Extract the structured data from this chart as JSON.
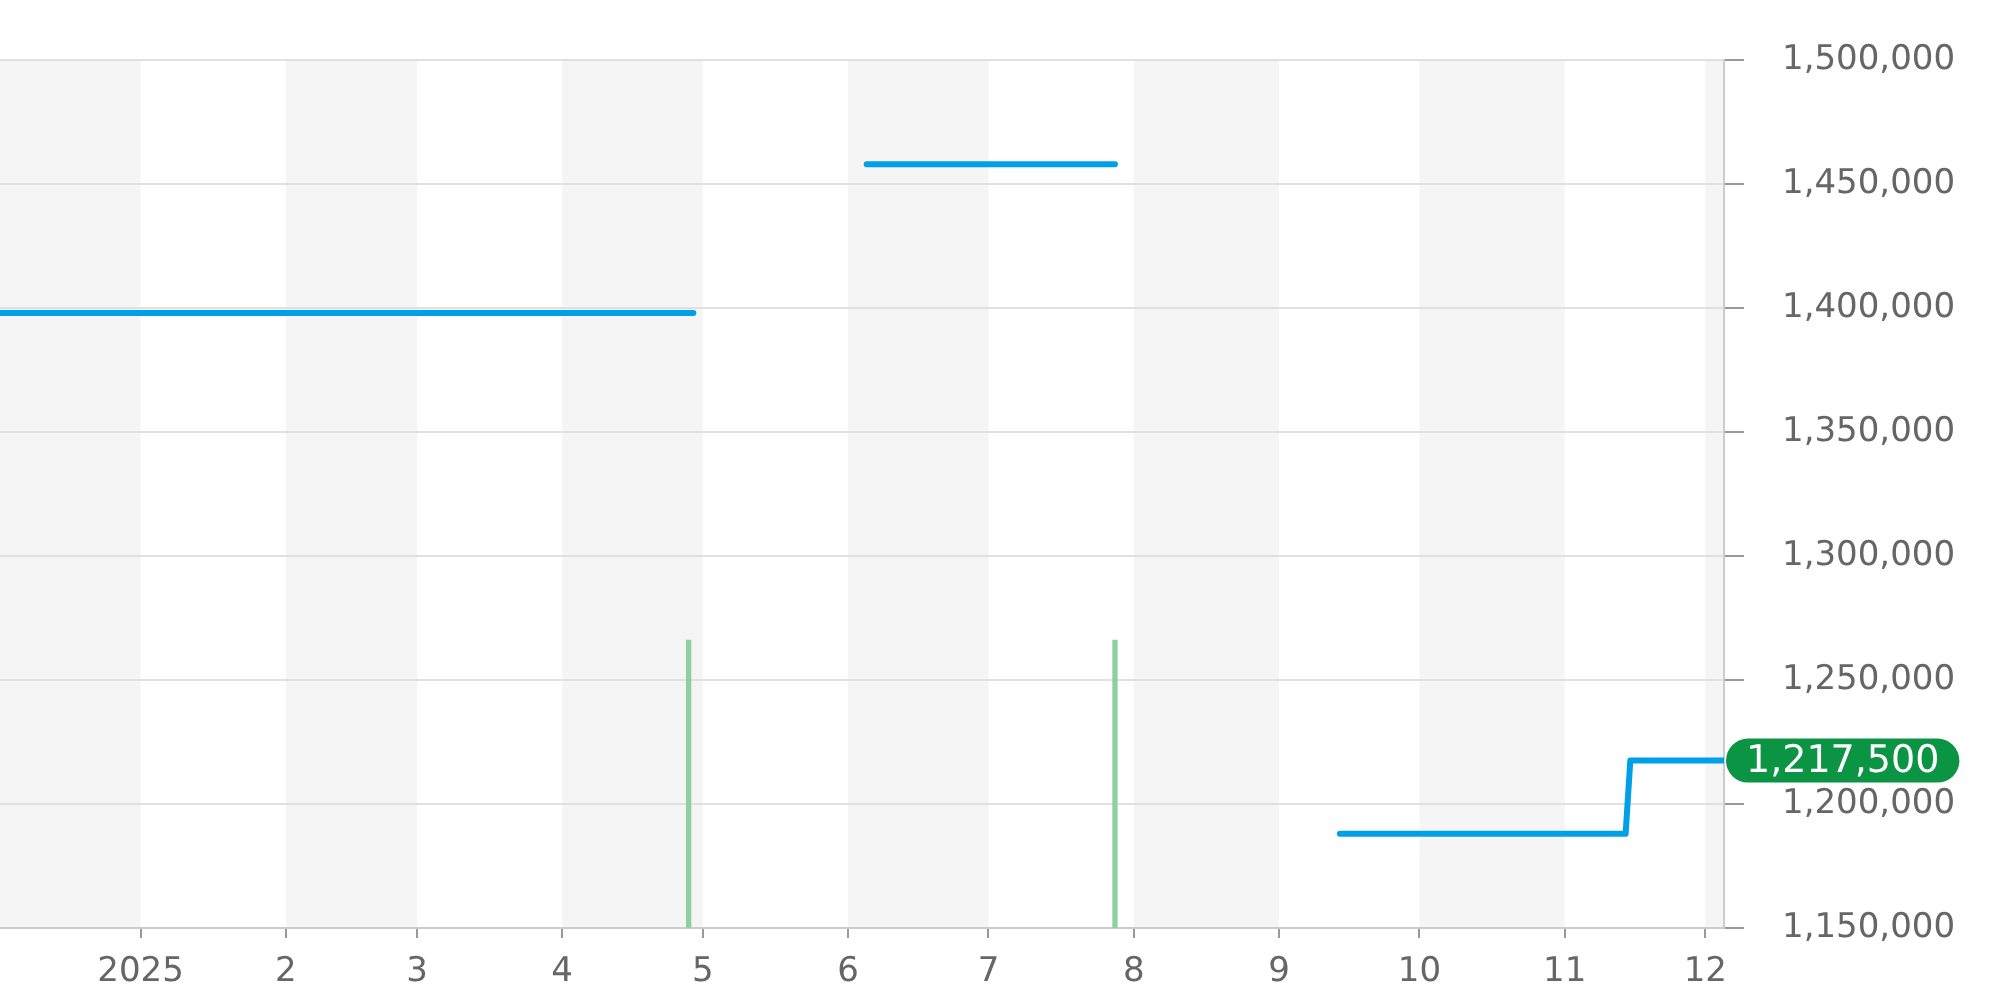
{
  "chart_data": {
    "type": "line",
    "xlim": [
      "2024-12-02",
      "2025-12-05"
    ],
    "xticks": [
      {
        "value": "2025-01-01",
        "label": "2025"
      },
      {
        "value": "2025-02-01",
        "label": "2"
      },
      {
        "value": "2025-03-01",
        "label": "3"
      },
      {
        "value": "2025-04-01",
        "label": "4"
      },
      {
        "value": "2025-05-01",
        "label": "5"
      },
      {
        "value": "2025-06-01",
        "label": "6"
      },
      {
        "value": "2025-07-01",
        "label": "7"
      },
      {
        "value": "2025-08-01",
        "label": "8"
      },
      {
        "value": "2025-09-01",
        "label": "9"
      },
      {
        "value": "2025-10-01",
        "label": "10"
      },
      {
        "value": "2025-11-01",
        "label": "11"
      },
      {
        "value": "2025-12-01",
        "label": "12"
      }
    ],
    "ylim": [
      1150000,
      1500000
    ],
    "yticks": [
      {
        "value": 1150000,
        "label": "1,150,000"
      },
      {
        "value": 1200000,
        "label": "1,200,000"
      },
      {
        "value": 1250000,
        "label": "1,250,000"
      },
      {
        "value": 1300000,
        "label": "1,300,000"
      },
      {
        "value": 1350000,
        "label": "1,350,000"
      },
      {
        "value": 1400000,
        "label": "1,400,000"
      },
      {
        "value": 1450000,
        "label": "1,450,000"
      },
      {
        "value": 1500000,
        "label": "1,500,000"
      }
    ],
    "series": [
      {
        "color": "#00a0e9",
        "x": [
          "2024-12-02",
          "2025-04-29",
          "2025-05-15",
          "2025-06-05",
          "2025-07-28",
          "2025-08-20",
          "2025-09-14",
          "2025-11-14",
          "2025-11-15",
          "2025-12-05"
        ],
        "values": [
          1398000,
          1398000,
          null,
          1458000,
          1458000,
          null,
          1188000,
          1188000,
          1217500,
          1217500
        ]
      },
      {
        "type": "bar",
        "color": "#8fd19e",
        "x": [
          "2025-04-28",
          "2025-07-28"
        ],
        "values": [
          1266000,
          1266000
        ]
      }
    ],
    "bands": [
      {
        "axis": "x",
        "from": "2024-12-01",
        "to": "2025-01-01",
        "color": "#f5f5f5"
      },
      {
        "axis": "x",
        "from": "2025-02-01",
        "to": "2025-03-01",
        "color": "#f5f5f5"
      },
      {
        "axis": "x",
        "from": "2025-04-01",
        "to": "2025-05-01",
        "color": "#f5f5f5"
      },
      {
        "axis": "x",
        "from": "2025-06-01",
        "to": "2025-07-01",
        "color": "#f5f5f5"
      },
      {
        "axis": "x",
        "from": "2025-08-01",
        "to": "2025-09-01",
        "color": "#f5f5f5"
      },
      {
        "axis": "x",
        "from": "2025-10-01",
        "to": "2025-11-01",
        "color": "#f5f5f5"
      },
      {
        "axis": "x",
        "from": "2025-12-01",
        "to": "2025-12-05",
        "color": "#f5f5f5"
      }
    ],
    "annotations": [
      {
        "text": "1,217,500",
        "x": "2025-12-05",
        "y": 1217500
      }
    ],
    "grid": "y",
    "legend": false
  }
}
